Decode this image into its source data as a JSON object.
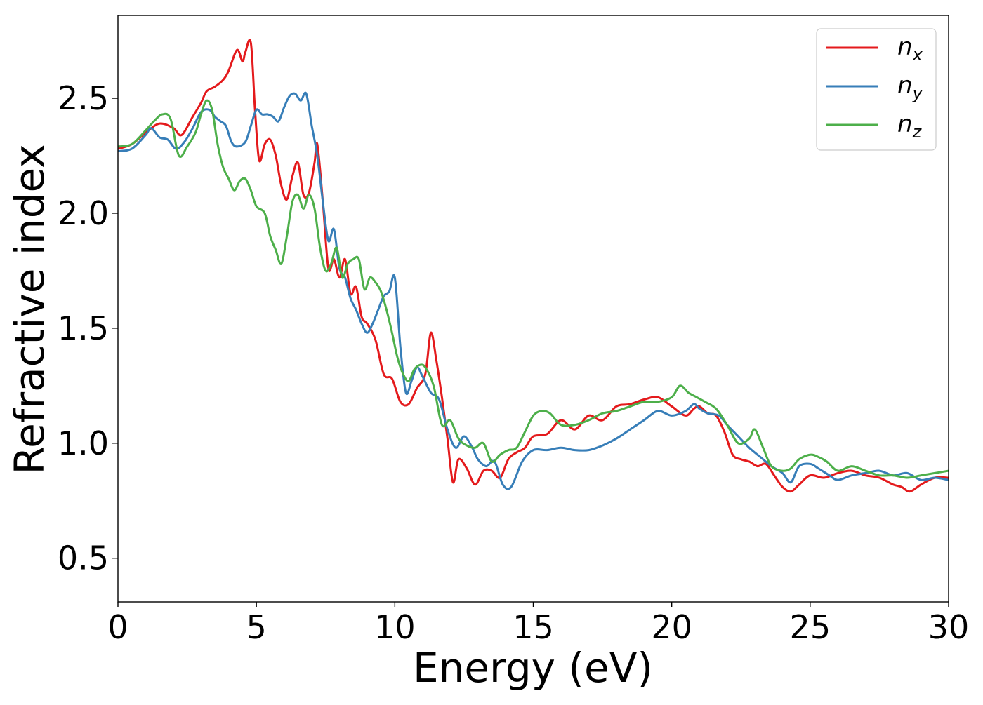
{
  "chart_data": {
    "type": "line",
    "xlabel": "Energy (eV)",
    "ylabel": "Refractive index",
    "xlim": [
      0,
      30
    ],
    "ylim": [
      0.31,
      2.86
    ],
    "xticks": [
      0,
      5,
      10,
      15,
      20,
      25,
      30
    ],
    "xtick_labels": [
      "0",
      "5",
      "10",
      "15",
      "20",
      "25",
      "30"
    ],
    "yticks": [
      0.5,
      1.0,
      1.5,
      2.0,
      2.5
    ],
    "ytick_labels": [
      "0.5",
      "1.0",
      "1.5",
      "2.0",
      "2.5"
    ],
    "grid": false,
    "legend_position": "top-right",
    "series": [
      {
        "name_base": "n",
        "name_sub": "x",
        "color": "#e41a1c",
        "x": [
          0,
          0.5,
          1.0,
          1.5,
          2.0,
          2.3,
          2.7,
          3.0,
          3.2,
          3.5,
          3.8,
          4.0,
          4.3,
          4.5,
          4.6,
          4.8,
          4.95,
          5.1,
          5.3,
          5.5,
          5.7,
          5.9,
          6.1,
          6.3,
          6.5,
          6.7,
          6.9,
          7.1,
          7.2,
          7.4,
          7.6,
          7.8,
          8.0,
          8.2,
          8.4,
          8.6,
          8.8,
          9.0,
          9.3,
          9.6,
          9.9,
          10.2,
          10.5,
          10.8,
          11.1,
          11.3,
          11.5,
          11.7,
          11.9,
          12.1,
          12.3,
          12.6,
          12.9,
          13.2,
          13.5,
          13.8,
          14.1,
          14.4,
          14.7,
          15.0,
          15.5,
          16.0,
          16.5,
          17.0,
          17.5,
          18.0,
          18.5,
          19.0,
          19.5,
          20.0,
          20.5,
          20.8,
          21.0,
          21.3,
          21.6,
          21.9,
          22.2,
          22.5,
          22.8,
          23.1,
          23.4,
          23.7,
          24.0,
          24.3,
          24.6,
          25.0,
          25.5,
          26.0,
          26.5,
          27.0,
          27.5,
          28.0,
          28.3,
          28.6,
          29.0,
          29.5,
          30.0
        ],
        "y": [
          2.28,
          2.3,
          2.35,
          2.39,
          2.37,
          2.34,
          2.42,
          2.48,
          2.53,
          2.55,
          2.58,
          2.62,
          2.71,
          2.66,
          2.7,
          2.74,
          2.45,
          2.23,
          2.3,
          2.32,
          2.25,
          2.12,
          2.06,
          2.16,
          2.22,
          2.08,
          2.09,
          2.22,
          2.3,
          2.05,
          1.76,
          1.8,
          1.72,
          1.8,
          1.65,
          1.68,
          1.55,
          1.52,
          1.45,
          1.3,
          1.28,
          1.18,
          1.17,
          1.24,
          1.3,
          1.48,
          1.36,
          1.2,
          1.02,
          0.83,
          0.93,
          0.89,
          0.82,
          0.88,
          0.88,
          0.85,
          0.93,
          0.96,
          0.98,
          1.03,
          1.04,
          1.1,
          1.06,
          1.12,
          1.1,
          1.16,
          1.17,
          1.19,
          1.2,
          1.16,
          1.12,
          1.15,
          1.16,
          1.13,
          1.12,
          1.05,
          0.95,
          0.93,
          0.92,
          0.9,
          0.91,
          0.86,
          0.81,
          0.79,
          0.82,
          0.86,
          0.85,
          0.87,
          0.88,
          0.86,
          0.85,
          0.82,
          0.81,
          0.79,
          0.82,
          0.85,
          0.85
        ]
      },
      {
        "name_base": "n",
        "name_sub": "y",
        "color": "#377eb8",
        "x": [
          0,
          0.5,
          1.0,
          1.2,
          1.5,
          1.8,
          2.1,
          2.4,
          2.7,
          3.0,
          3.3,
          3.5,
          3.7,
          3.9,
          4.1,
          4.3,
          4.6,
          4.8,
          5.0,
          5.2,
          5.4,
          5.6,
          5.8,
          6.0,
          6.2,
          6.4,
          6.6,
          6.8,
          7.0,
          7.2,
          7.4,
          7.6,
          7.8,
          8.0,
          8.2,
          8.4,
          8.6,
          8.8,
          9.0,
          9.2,
          9.4,
          9.6,
          9.8,
          10.0,
          10.2,
          10.4,
          10.6,
          10.8,
          11.0,
          11.3,
          11.6,
          11.9,
          12.2,
          12.5,
          12.8,
          13.0,
          13.3,
          13.6,
          13.9,
          14.2,
          14.6,
          15.0,
          15.5,
          16.0,
          16.5,
          17.0,
          17.5,
          18.0,
          18.5,
          19.0,
          19.5,
          20.0,
          20.5,
          20.8,
          21.0,
          21.3,
          21.7,
          22.0,
          22.4,
          22.8,
          23.2,
          23.6,
          24.0,
          24.3,
          24.6,
          25.0,
          25.3,
          25.7,
          26.0,
          26.5,
          27.0,
          27.5,
          28.0,
          28.5,
          29.0,
          29.5,
          30.0
        ],
        "y": [
          2.27,
          2.28,
          2.34,
          2.37,
          2.33,
          2.32,
          2.28,
          2.31,
          2.37,
          2.44,
          2.45,
          2.42,
          2.4,
          2.38,
          2.31,
          2.29,
          2.31,
          2.38,
          2.45,
          2.43,
          2.43,
          2.42,
          2.4,
          2.46,
          2.51,
          2.52,
          2.49,
          2.52,
          2.38,
          2.25,
          2.05,
          1.88,
          1.93,
          1.76,
          1.72,
          1.63,
          1.58,
          1.52,
          1.48,
          1.52,
          1.58,
          1.64,
          1.66,
          1.72,
          1.42,
          1.22,
          1.27,
          1.33,
          1.29,
          1.22,
          1.19,
          1.06,
          0.98,
          1.03,
          0.98,
          0.93,
          0.9,
          0.92,
          0.82,
          0.81,
          0.92,
          0.97,
          0.97,
          0.98,
          0.97,
          0.97,
          0.99,
          1.02,
          1.06,
          1.1,
          1.14,
          1.12,
          1.14,
          1.17,
          1.15,
          1.13,
          1.12,
          1.08,
          1.03,
          0.98,
          0.94,
          0.9,
          0.87,
          0.83,
          0.9,
          0.91,
          0.89,
          0.86,
          0.84,
          0.86,
          0.87,
          0.88,
          0.86,
          0.87,
          0.84,
          0.85,
          0.84
        ]
      },
      {
        "name_base": "n",
        "name_sub": "z",
        "color": "#4daf4a",
        "x": [
          0,
          0.5,
          1.0,
          1.3,
          1.6,
          1.9,
          2.2,
          2.5,
          2.8,
          3.0,
          3.2,
          3.4,
          3.6,
          3.8,
          4.0,
          4.2,
          4.4,
          4.6,
          4.8,
          5.0,
          5.3,
          5.5,
          5.7,
          5.9,
          6.1,
          6.3,
          6.5,
          6.7,
          6.9,
          7.1,
          7.3,
          7.5,
          7.7,
          7.9,
          8.1,
          8.3,
          8.5,
          8.7,
          8.9,
          9.1,
          9.3,
          9.5,
          9.7,
          9.9,
          10.1,
          10.3,
          10.5,
          10.7,
          10.9,
          11.1,
          11.4,
          11.7,
          12.0,
          12.3,
          12.6,
          12.9,
          13.2,
          13.5,
          13.8,
          14.1,
          14.4,
          14.7,
          15.0,
          15.3,
          15.6,
          16.0,
          16.5,
          17.0,
          17.5,
          18.0,
          18.5,
          19.0,
          19.5,
          20.0,
          20.3,
          20.6,
          20.9,
          21.2,
          21.6,
          22.0,
          22.4,
          22.8,
          23.0,
          23.3,
          23.6,
          24.0,
          24.3,
          24.6,
          25.0,
          25.3,
          25.6,
          26.0,
          26.5,
          27.0,
          27.5,
          28.0,
          28.5,
          29.0,
          29.5,
          30.0
        ],
        "y": [
          2.29,
          2.3,
          2.36,
          2.4,
          2.43,
          2.41,
          2.25,
          2.29,
          2.35,
          2.43,
          2.49,
          2.45,
          2.3,
          2.2,
          2.15,
          2.1,
          2.14,
          2.15,
          2.1,
          2.03,
          2.0,
          1.9,
          1.84,
          1.78,
          1.9,
          2.05,
          2.08,
          2.02,
          2.08,
          2.02,
          1.85,
          1.75,
          1.78,
          1.85,
          1.72,
          1.78,
          1.8,
          1.8,
          1.67,
          1.72,
          1.7,
          1.66,
          1.58,
          1.48,
          1.37,
          1.3,
          1.27,
          1.32,
          1.34,
          1.33,
          1.25,
          1.08,
          1.1,
          1.02,
          0.99,
          0.98,
          1.0,
          0.92,
          0.95,
          0.97,
          0.98,
          1.05,
          1.12,
          1.14,
          1.13,
          1.08,
          1.08,
          1.1,
          1.13,
          1.14,
          1.16,
          1.18,
          1.18,
          1.2,
          1.25,
          1.22,
          1.2,
          1.18,
          1.15,
          1.08,
          1.0,
          1.02,
          1.06,
          0.98,
          0.9,
          0.88,
          0.89,
          0.93,
          0.95,
          0.94,
          0.92,
          0.88,
          0.9,
          0.88,
          0.86,
          0.86,
          0.85,
          0.86,
          0.87,
          0.88
        ]
      }
    ]
  }
}
